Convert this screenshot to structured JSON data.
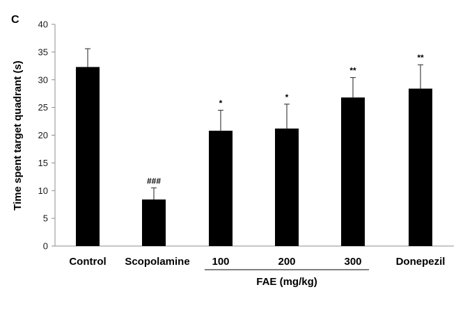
{
  "panel_label": "C",
  "chart_data": {
    "type": "bar",
    "categories": [
      "Control",
      "Scopolamine",
      "100",
      "200",
      "300",
      "Donepezil"
    ],
    "values": [
      32.3,
      8.4,
      20.8,
      21.2,
      26.8,
      28.4
    ],
    "errors": [
      3.3,
      2.1,
      3.7,
      4.4,
      3.6,
      4.3
    ],
    "significance": [
      "",
      "###",
      "*",
      "*",
      "**",
      "**"
    ],
    "ylabel": "Time spent target quadrant (s)",
    "ylim": [
      0,
      40
    ],
    "yticks": [
      0,
      5,
      10,
      15,
      20,
      25,
      30,
      35,
      40
    ],
    "group": {
      "label": "FAE (mg/kg)",
      "categories": [
        "100",
        "200",
        "300"
      ]
    },
    "bar_color": "#000000",
    "grid": false,
    "legend": "none"
  }
}
